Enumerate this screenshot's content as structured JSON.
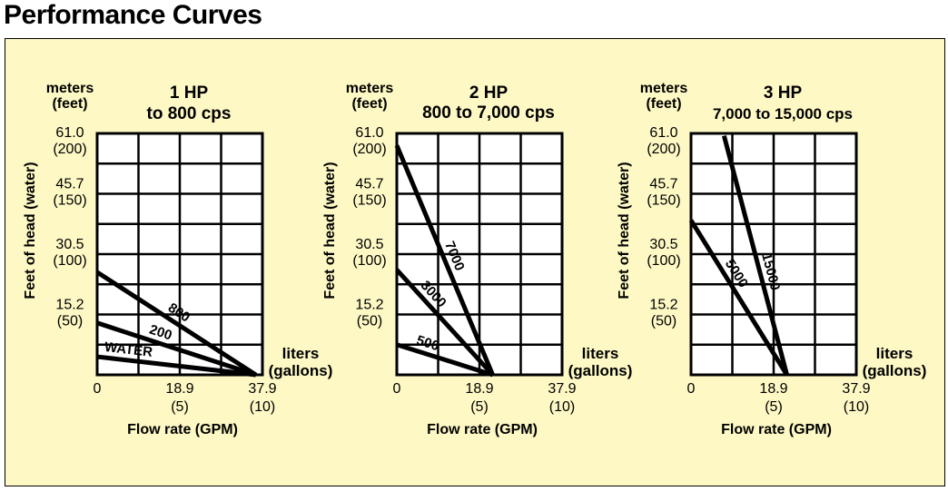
{
  "page_title": "Performance Curves",
  "chart_data": [
    {
      "type": "line",
      "title": "1 HP",
      "subtitle": "to 800 cps",
      "ylabel": "Feet of head (water)",
      "ylabel_units_top": "meters",
      "ylabel_units_bottom": "(feet)",
      "xlabel": "Flow rate (GPM)",
      "xunit_top": "liters",
      "xunit_bottom": "(gallons)",
      "xlim": [
        0,
        10
      ],
      "ylim": [
        0,
        200
      ],
      "x_ticks": [
        {
          "value": 0,
          "metric": "0",
          "gal": ""
        },
        {
          "value": 5,
          "metric": "18.9",
          "gal": "(5)"
        },
        {
          "value": 10,
          "metric": "37.9",
          "gal": "(10)"
        }
      ],
      "y_ticks": [
        {
          "value": 50,
          "metric": "15.2",
          "feet": "(50)"
        },
        {
          "value": 100,
          "metric": "30.5",
          "feet": "(100)"
        },
        {
          "value": 150,
          "metric": "45.7",
          "feet": "(150)"
        },
        {
          "value": 200,
          "metric": "61.0",
          "feet": "(200)"
        }
      ],
      "series": [
        {
          "name": "800",
          "x": [
            0,
            9.6
          ],
          "y": [
            85,
            0
          ]
        },
        {
          "name": "200",
          "x": [
            0,
            9.6
          ],
          "y": [
            43,
            0
          ]
        },
        {
          "name": "WATER",
          "x": [
            0,
            9.6
          ],
          "y": [
            15,
            0
          ]
        }
      ]
    },
    {
      "type": "line",
      "title": "2 HP",
      "subtitle": "800 to 7,000 cps",
      "ylabel": "Feet of head (water)",
      "ylabel_units_top": "meters",
      "ylabel_units_bottom": "(feet)",
      "xlabel": "Flow rate (GPM)",
      "xunit_top": "liters",
      "xunit_bottom": "(gallons)",
      "xlim": [
        0,
        10
      ],
      "ylim": [
        0,
        200
      ],
      "x_ticks": [
        {
          "value": 0,
          "metric": "0",
          "gal": ""
        },
        {
          "value": 5,
          "metric": "18.9",
          "gal": "(5)"
        },
        {
          "value": 10,
          "metric": "37.9",
          "gal": "(10)"
        }
      ],
      "y_ticks": [
        {
          "value": 50,
          "metric": "15.2",
          "feet": "(50)"
        },
        {
          "value": 100,
          "metric": "30.5",
          "feet": "(100)"
        },
        {
          "value": 150,
          "metric": "45.7",
          "feet": "(150)"
        },
        {
          "value": 200,
          "metric": "61.0",
          "feet": "(200)"
        }
      ],
      "series": [
        {
          "name": "7000",
          "x": [
            0,
            5.8
          ],
          "y": [
            190,
            0
          ]
        },
        {
          "name": "3000",
          "x": [
            0,
            5.8
          ],
          "y": [
            87,
            0
          ]
        },
        {
          "name": "500",
          "x": [
            0,
            5.8
          ],
          "y": [
            25,
            0
          ]
        }
      ]
    },
    {
      "type": "line",
      "title": "3 HP",
      "subtitle": "7,000 to 15,000 cps",
      "ylabel": "Feet of head (water)",
      "ylabel_units_top": "meters",
      "ylabel_units_bottom": "(feet)",
      "xlabel": "Flow rate (GPM)",
      "xunit_top": "liters",
      "xunit_bottom": "(gallons)",
      "xlim": [
        0,
        10
      ],
      "ylim": [
        0,
        200
      ],
      "x_ticks": [
        {
          "value": 0,
          "metric": "0",
          "gal": ""
        },
        {
          "value": 5,
          "metric": "18.9",
          "gal": "(5)"
        },
        {
          "value": 10,
          "metric": "37.9",
          "gal": "(10)"
        }
      ],
      "y_ticks": [
        {
          "value": 50,
          "metric": "15.2",
          "feet": "(50)"
        },
        {
          "value": 100,
          "metric": "30.5",
          "feet": "(100)"
        },
        {
          "value": 150,
          "metric": "45.7",
          "feet": "(150)"
        },
        {
          "value": 200,
          "metric": "61.0",
          "feet": "(200)"
        }
      ],
      "series": [
        {
          "name": "15000",
          "x": [
            2.0,
            5.8
          ],
          "y": [
            198,
            0
          ]
        },
        {
          "name": "5000",
          "x": [
            0,
            5.8
          ],
          "y": [
            128,
            0
          ]
        }
      ]
    }
  ]
}
